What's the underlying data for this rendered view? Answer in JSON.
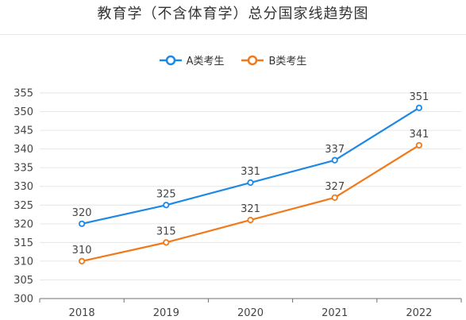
{
  "page": {
    "title": "教育学（不含体育学）总分国家线趋势图"
  },
  "chart_data": {
    "type": "line",
    "title": "教育学（不含体育学）总分国家线趋势图",
    "xlabel": "",
    "ylabel": "",
    "categories": [
      "2018",
      "2019",
      "2020",
      "2021",
      "2022"
    ],
    "ylim": [
      300,
      355
    ],
    "yticks": [
      300,
      305,
      310,
      315,
      320,
      325,
      330,
      335,
      340,
      345,
      350,
      355
    ],
    "grid": true,
    "legend_position": "top-center",
    "series": [
      {
        "name": "A类考生",
        "color": "#1e88e5",
        "values": [
          320,
          325,
          331,
          337,
          351
        ]
      },
      {
        "name": "B类考生",
        "color": "#f07a1b",
        "values": [
          310,
          315,
          321,
          327,
          341
        ]
      }
    ]
  }
}
